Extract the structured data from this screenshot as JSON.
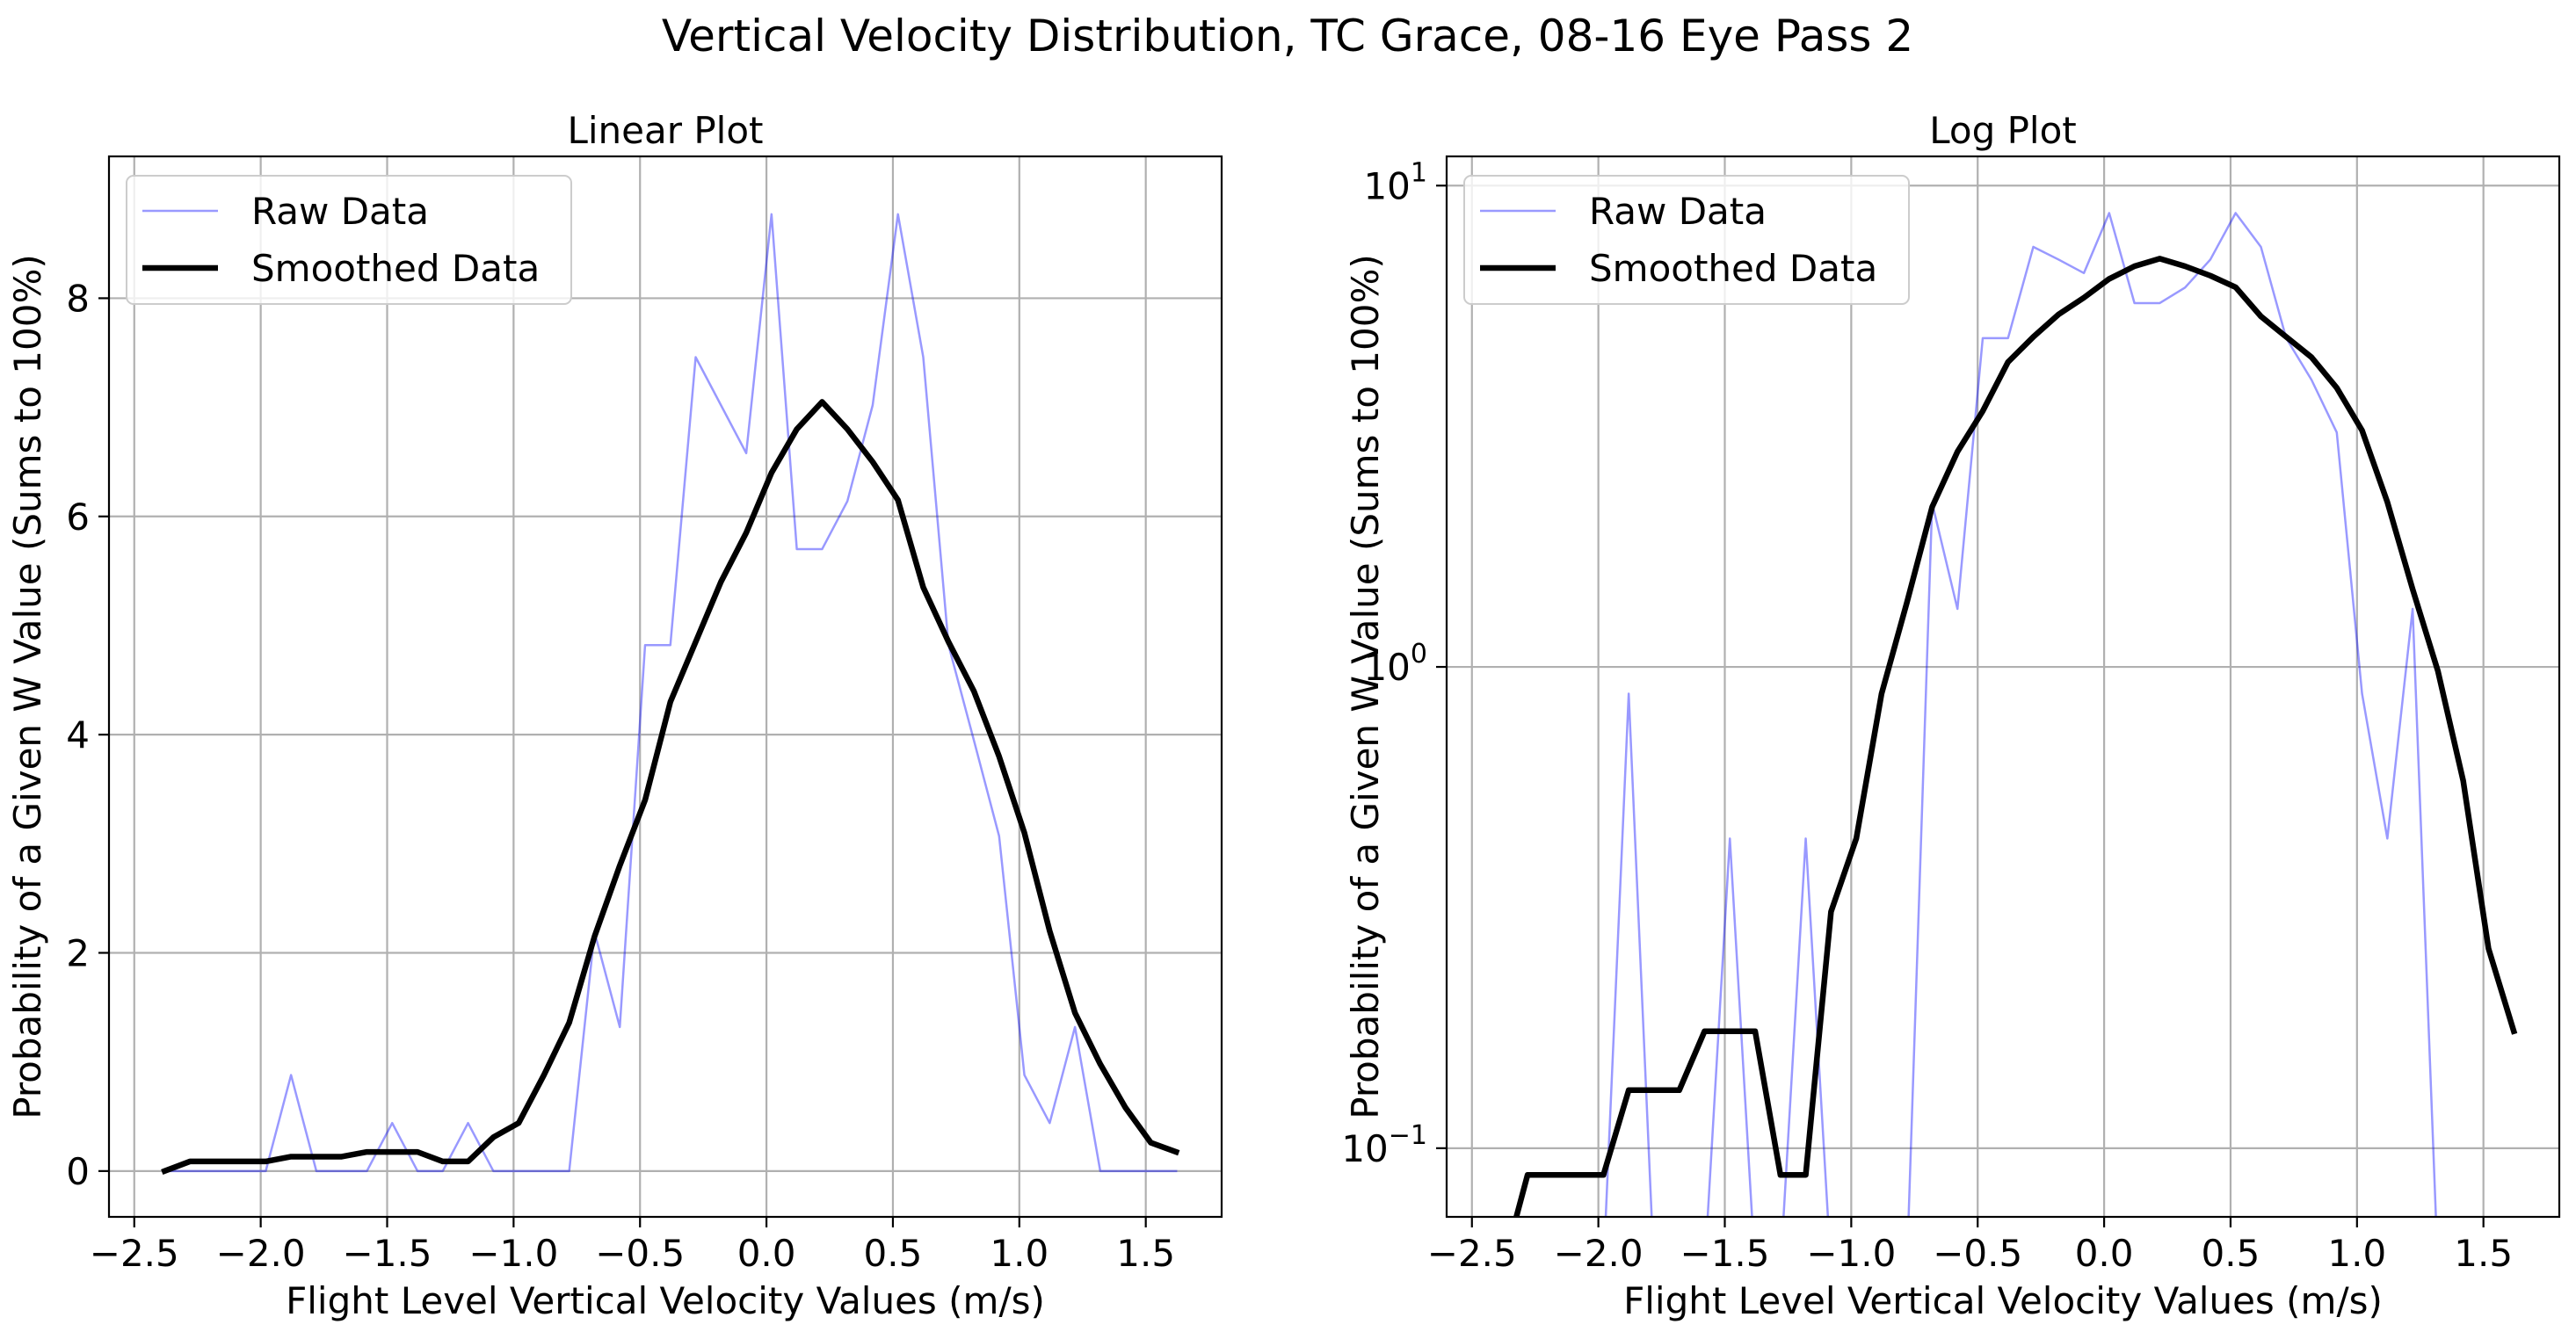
{
  "figure": {
    "title": "Vertical Velocity Distribution, TC Grace, 08-16 Eye Pass 2"
  },
  "colors": {
    "raw": "#0000ff",
    "smoothed": "#000000",
    "grid": "#b0b0b0",
    "axes": "#000000"
  },
  "chart_data": [
    {
      "type": "line",
      "title": "Linear Plot",
      "xlabel": "Flight Level Vertical Velocity Values (m/s)",
      "ylabel": "Probability of a Given W Value (Sums to 100%)",
      "yscale": "linear",
      "xlim": [
        -2.6,
        1.8
      ],
      "ylim": [
        -0.42,
        9.3
      ],
      "xticks": [
        -2.5,
        -2.0,
        -1.5,
        -1.0,
        -0.5,
        0.0,
        0.5,
        1.0,
        1.5
      ],
      "xtick_labels": [
        "−2.5",
        "−2.0",
        "−1.5",
        "−1.0",
        "−0.5",
        "0.0",
        "0.5",
        "1.0",
        "1.5"
      ],
      "yticks": [
        0,
        2,
        4,
        6,
        8
      ],
      "ytick_labels": [
        "0",
        "2",
        "4",
        "6",
        "8"
      ],
      "grid": true,
      "legend": {
        "position": "upper-left",
        "entries": [
          "Raw Data",
          "Smoothed Data"
        ]
      },
      "series": [
        {
          "name": "Raw Data",
          "color": "#0000ff",
          "opacity": 0.4,
          "line_width": 2.5,
          "x": [
            -2.38,
            -2.28,
            -2.18,
            -2.08,
            -1.98,
            -1.88,
            -1.78,
            -1.68,
            -1.58,
            -1.48,
            -1.38,
            -1.28,
            -1.18,
            -1.08,
            -0.98,
            -0.88,
            -0.78,
            -0.68,
            -0.58,
            -0.48,
            -0.38,
            -0.28,
            -0.18,
            -0.08,
            0.02,
            0.12,
            0.22,
            0.32,
            0.42,
            0.52,
            0.62,
            0.72,
            0.82,
            0.92,
            1.02,
            1.12,
            1.22,
            1.32,
            1.42,
            1.52,
            1.62
          ],
          "y": [
            0.0,
            0.0,
            0.0,
            0.0,
            0.0,
            0.88,
            0.0,
            0.0,
            0.0,
            0.44,
            0.0,
            0.0,
            0.44,
            0.0,
            0.0,
            0.0,
            0.0,
            2.19,
            1.32,
            4.82,
            4.82,
            7.46,
            7.02,
            6.58,
            8.77,
            5.7,
            5.7,
            6.14,
            7.02,
            8.77,
            7.46,
            4.82,
            3.95,
            3.07,
            0.88,
            0.44,
            1.32,
            0.0,
            0.0,
            0.0,
            0.0
          ]
        },
        {
          "name": "Smoothed Data",
          "color": "#000000",
          "opacity": 1,
          "line_width": 6.5,
          "x": [
            -2.38,
            -2.28,
            -2.18,
            -2.08,
            -1.98,
            -1.88,
            -1.78,
            -1.68,
            -1.58,
            -1.48,
            -1.38,
            -1.28,
            -1.18,
            -1.08,
            -0.98,
            -0.88,
            -0.78,
            -0.68,
            -0.58,
            -0.48,
            -0.38,
            -0.28,
            -0.18,
            -0.08,
            0.02,
            0.12,
            0.22,
            0.32,
            0.42,
            0.52,
            0.62,
            0.72,
            0.82,
            0.92,
            1.02,
            1.12,
            1.22,
            1.32,
            1.42,
            1.52,
            1.62
          ],
          "y": [
            0.0,
            0.088,
            0.088,
            0.088,
            0.088,
            0.132,
            0.132,
            0.132,
            0.175,
            0.175,
            0.175,
            0.088,
            0.088,
            0.31,
            0.44,
            0.88,
            1.36,
            2.15,
            2.8,
            3.4,
            4.3,
            4.85,
            5.4,
            5.85,
            6.4,
            6.8,
            7.05,
            6.8,
            6.5,
            6.15,
            5.35,
            4.85,
            4.4,
            3.8,
            3.1,
            2.2,
            1.45,
            0.98,
            0.58,
            0.26,
            0.175
          ]
        }
      ]
    },
    {
      "type": "line",
      "title": "Log Plot",
      "xlabel": "Flight Level Vertical Velocity Values (m/s)",
      "ylabel": "Probability of a Given W Value (Sums to 100%)",
      "yscale": "log",
      "xlim": [
        -2.6,
        1.8
      ],
      "ylim": [
        0.072,
        11.5
      ],
      "xticks": [
        -2.5,
        -2.0,
        -1.5,
        -1.0,
        -0.5,
        0.0,
        0.5,
        1.0,
        1.5
      ],
      "xtick_labels": [
        "−2.5",
        "−2.0",
        "−1.5",
        "−1.0",
        "−0.5",
        "0.0",
        "0.5",
        "1.0",
        "1.5"
      ],
      "yticks": [
        0.1,
        1,
        10
      ],
      "ytick_labels": [
        {
          "base": "10",
          "exp": "−1"
        },
        {
          "base": "10",
          "exp": "0"
        },
        {
          "base": "10",
          "exp": "1"
        }
      ],
      "grid": true,
      "legend": {
        "position": "upper-left",
        "entries": [
          "Raw Data",
          "Smoothed Data"
        ]
      },
      "series": [
        {
          "name": "Raw Data",
          "color": "#0000ff",
          "opacity": 0.4,
          "line_width": 2.5,
          "x": [
            -2.38,
            -2.28,
            -2.18,
            -2.08,
            -1.98,
            -1.88,
            -1.78,
            -1.68,
            -1.58,
            -1.48,
            -1.38,
            -1.28,
            -1.18,
            -1.08,
            -0.98,
            -0.88,
            -0.78,
            -0.68,
            -0.58,
            -0.48,
            -0.38,
            -0.28,
            -0.18,
            -0.08,
            0.02,
            0.12,
            0.22,
            0.32,
            0.42,
            0.52,
            0.62,
            0.72,
            0.82,
            0.92,
            1.02,
            1.12,
            1.22,
            1.32,
            1.42,
            1.52,
            1.62
          ],
          "y": [
            0.0,
            0.0,
            0.0,
            0.0,
            0.0,
            0.88,
            0.0,
            0.0,
            0.0,
            0.44,
            0.0,
            0.0,
            0.44,
            0.0,
            0.0,
            0.0,
            0.0,
            2.19,
            1.32,
            4.82,
            4.82,
            7.46,
            7.02,
            6.58,
            8.77,
            5.7,
            5.7,
            6.14,
            7.02,
            8.77,
            7.46,
            4.82,
            3.95,
            3.07,
            0.88,
            0.44,
            1.32,
            0.0,
            0.0,
            0.0,
            0.0
          ]
        },
        {
          "name": "Smoothed Data",
          "color": "#000000",
          "opacity": 1,
          "line_width": 6.5,
          "x": [
            -2.38,
            -2.28,
            -2.18,
            -2.08,
            -1.98,
            -1.88,
            -1.78,
            -1.68,
            -1.58,
            -1.48,
            -1.38,
            -1.28,
            -1.18,
            -1.08,
            -0.98,
            -0.88,
            -0.78,
            -0.68,
            -0.58,
            -0.48,
            -0.38,
            -0.28,
            -0.18,
            -0.08,
            0.02,
            0.12,
            0.22,
            0.32,
            0.42,
            0.52,
            0.62,
            0.72,
            0.82,
            0.92,
            1.02,
            1.12,
            1.22,
            1.32,
            1.42,
            1.52,
            1.62
          ],
          "y": [
            0.0,
            0.088,
            0.088,
            0.088,
            0.088,
            0.132,
            0.132,
            0.132,
            0.175,
            0.175,
            0.175,
            0.088,
            0.088,
            0.31,
            0.44,
            0.88,
            1.36,
            2.15,
            2.8,
            3.4,
            4.3,
            4.85,
            5.4,
            5.85,
            6.4,
            6.8,
            7.05,
            6.8,
            6.5,
            6.15,
            5.35,
            4.85,
            4.4,
            3.8,
            3.1,
            2.2,
            1.45,
            0.98,
            0.58,
            0.26,
            0.175
          ]
        }
      ]
    }
  ]
}
